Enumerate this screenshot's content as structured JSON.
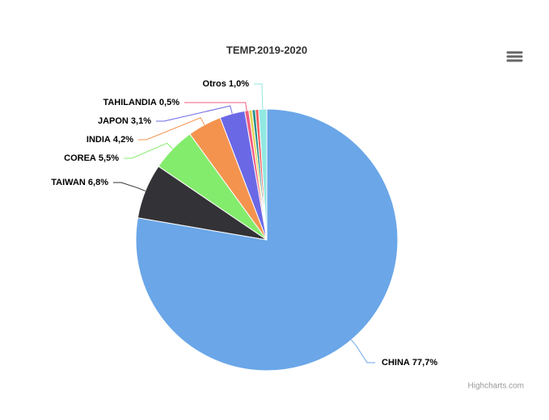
{
  "chart_data": {
    "type": "pie",
    "title": "TEMP.2019-2020",
    "categories": [
      "CHINA",
      "TAIWAN",
      "COREA",
      "INDIA",
      "JAPON",
      "TAHILANDIA",
      null,
      null,
      null,
      "Otros"
    ],
    "values": [
      77.7,
      6.8,
      5.5,
      4.2,
      3.1,
      0.5,
      0.4,
      0.4,
      0.4,
      1.0
    ],
    "value_labels": [
      "77,7%",
      "6,8%",
      "5,5%",
      "4,2%",
      "3,1%",
      "0,5%",
      null,
      null,
      null,
      "1,0%"
    ],
    "colors": [
      "#6aa6e8",
      "#333337",
      "#84ec6c",
      "#f4934e",
      "#6b68e6",
      "#f15c80",
      "#e4d354",
      "#2b908f",
      "#f45b5b",
      "#91e8e1"
    ],
    "credits": "Highcharts.com"
  }
}
